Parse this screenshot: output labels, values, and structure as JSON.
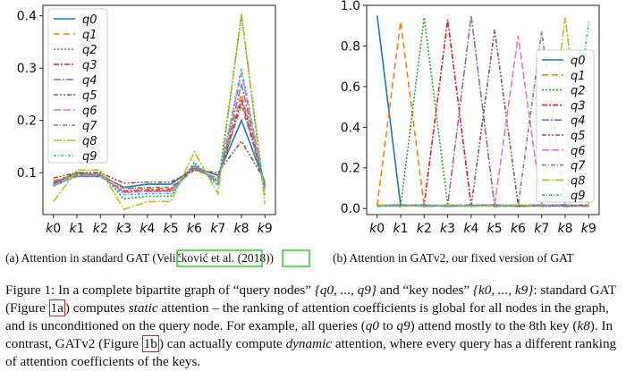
{
  "colors": [
    "#1f77b4",
    "#ff7f0e",
    "#2ca02c",
    "#d62728",
    "#9467bd",
    "#8c564b",
    "#e377c2",
    "#7f7f7f",
    "#bcbd22",
    "#17becf"
  ],
  "dashes": [
    "",
    "7,4",
    "2,2",
    "6,2,2,2",
    "8,2,2,2",
    "5,2,2,2,2,2",
    "8,3",
    "5,2,1,2",
    "9,2,2,2",
    "3,2,1,2"
  ],
  "left_chart": {
    "chart_data": {
      "type": "line",
      "categories": [
        "k0",
        "k1",
        "k2",
        "k3",
        "k4",
        "k5",
        "k6",
        "k7",
        "k8",
        "k9"
      ],
      "ylim": [
        0.02,
        0.42
      ],
      "yticks": [
        "0.1",
        "0.2",
        "0.3",
        "0.4"
      ],
      "ytick_values": [
        0.1,
        0.2,
        0.3,
        0.4
      ],
      "legend": [
        "q0",
        "q1",
        "q2",
        "q3",
        "q4",
        "q5",
        "q6",
        "q7",
        "q8",
        "q9"
      ],
      "legend_position": "top-left",
      "series": [
        {
          "name": "q0",
          "values": [
            0.08,
            0.1,
            0.095,
            0.072,
            0.078,
            0.078,
            0.11,
            0.095,
            0.2,
            0.08
          ]
        },
        {
          "name": "q1",
          "values": [
            0.085,
            0.097,
            0.097,
            0.07,
            0.07,
            0.07,
            0.105,
            0.09,
            0.25,
            0.075
          ]
        },
        {
          "name": "q2",
          "values": [
            0.075,
            0.1,
            0.1,
            0.05,
            0.055,
            0.055,
            0.12,
            0.075,
            0.4,
            0.055
          ]
        },
        {
          "name": "q3",
          "values": [
            0.078,
            0.093,
            0.093,
            0.065,
            0.067,
            0.067,
            0.11,
            0.085,
            0.24,
            0.075
          ]
        },
        {
          "name": "q4",
          "values": [
            0.076,
            0.093,
            0.093,
            0.063,
            0.065,
            0.065,
            0.115,
            0.083,
            0.27,
            0.072
          ]
        },
        {
          "name": "q5",
          "values": [
            0.09,
            0.1,
            0.1,
            0.08,
            0.082,
            0.082,
            0.105,
            0.1,
            0.16,
            0.085
          ]
        },
        {
          "name": "q6",
          "values": [
            0.077,
            0.095,
            0.095,
            0.062,
            0.064,
            0.064,
            0.112,
            0.082,
            0.29,
            0.07
          ]
        },
        {
          "name": "q7",
          "values": [
            0.082,
            0.097,
            0.097,
            0.07,
            0.072,
            0.072,
            0.108,
            0.088,
            0.23,
            0.078
          ]
        },
        {
          "name": "q8",
          "values": [
            0.045,
            0.105,
            0.105,
            0.03,
            0.045,
            0.045,
            0.14,
            0.06,
            0.405,
            0.04
          ]
        },
        {
          "name": "q9",
          "values": [
            0.074,
            0.094,
            0.094,
            0.058,
            0.06,
            0.06,
            0.115,
            0.08,
            0.3,
            0.068
          ]
        }
      ]
    },
    "caption_prefix": "(a) Attention in standard GAT (",
    "caption_cite": "Veličković et al.",
    "caption_mid": " (",
    "caption_year": "2018",
    "caption_suffix": "))"
  },
  "right_chart": {
    "chart_data": {
      "type": "line",
      "categories": [
        "k0",
        "k1",
        "k2",
        "k3",
        "k4",
        "k5",
        "k6",
        "k7",
        "k8",
        "k9"
      ],
      "ylim": [
        -0.03,
        1.0
      ],
      "yticks": [
        "0.0",
        "0.2",
        "0.4",
        "0.6",
        "0.8",
        "1.0"
      ],
      "ytick_values": [
        0.0,
        0.2,
        0.4,
        0.6,
        0.8,
        1.0
      ],
      "legend": [
        "q0",
        "q1",
        "q2",
        "q3",
        "q4",
        "q5",
        "q6",
        "q7",
        "q8",
        "q9"
      ],
      "legend_position": "right",
      "peaks": [
        0.95,
        0.92,
        0.94,
        0.93,
        0.95,
        0.88,
        0.85,
        0.87,
        0.94,
        0.92
      ],
      "baseline": 0.01
    },
    "caption": "(b) Attention in GATv2, our fixed version of GAT"
  },
  "figure": {
    "p1": "Figure 1: In a complete bipartite graph of “query nodes” ",
    "set_q": "{q0, ..., q9}",
    "p2": " and “key nodes” ",
    "set_k": "{k0, ..., k9}",
    "p3": ": standard GAT (Figure ",
    "ref_a": "1a",
    "p4": ") computes ",
    "static": "static",
    "p5": " attention – the ranking of attention coefficients is global for all nodes in the graph, and is unconditioned on the query node. For example, all queries (",
    "q0": "q0",
    "p6": " to ",
    "q9": "q9",
    "p7": ") attend mostly to the 8th key (",
    "k8": "k8",
    "p8": "). In contrast, GATv2 (Figure ",
    "ref_b": "1b",
    "p9": ") can actually compute ",
    "dynamic": "dynamic",
    "p10": " attention, where every query has a different ranking of attention coefficients of the keys."
  }
}
